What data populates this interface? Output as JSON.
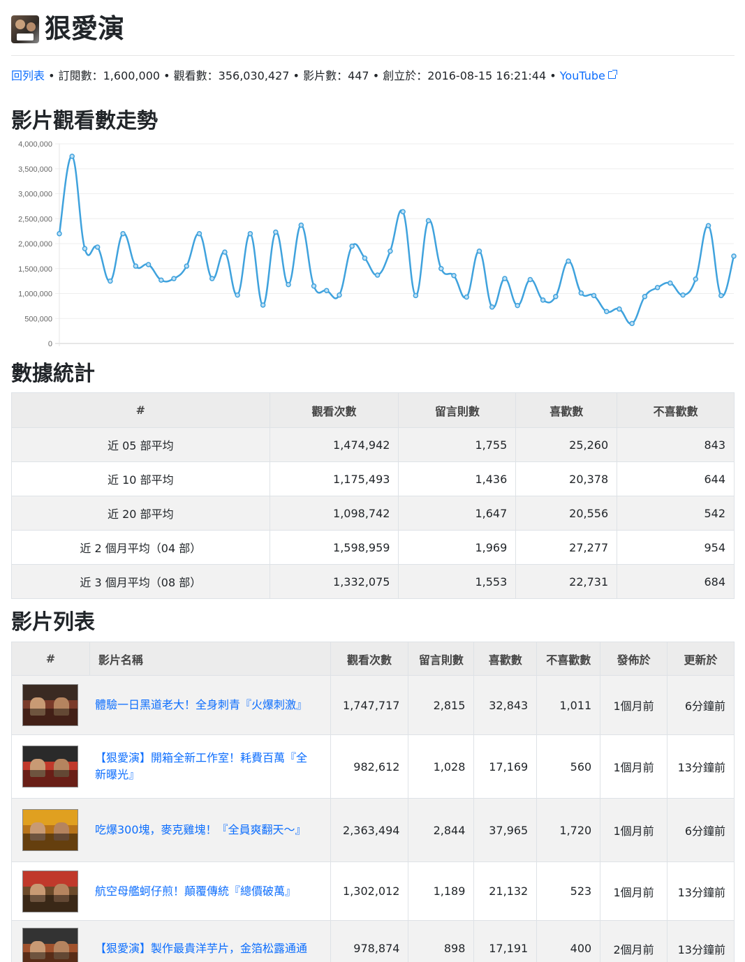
{
  "channel": {
    "title": "狠愛演",
    "back_link": "回列表",
    "meta_text": " • 訂閱數：1,600,000 • 觀看數：356,030,427 • 影片數：447 • 創立於：2016-08-15 16:21:44 • ",
    "youtube_link": "YouTube"
  },
  "sections": {
    "trend": "影片觀看數走勢",
    "stats": "數據統計",
    "videos": "影片列表"
  },
  "chart_data": {
    "type": "line",
    "y_ticks": [
      "4,000,000",
      "3,500,000",
      "3,000,000",
      "2,500,000",
      "2,000,000",
      "1,500,000",
      "1,000,000",
      "500,000",
      "0"
    ],
    "ylim": [
      0,
      4000000
    ],
    "color": "#3fa2dd",
    "values": [
      2200000,
      3750000,
      1900000,
      1930000,
      1250000,
      2200000,
      1550000,
      1580000,
      1270000,
      1300000,
      1550000,
      2200000,
      1300000,
      1830000,
      970000,
      2200000,
      770000,
      2230000,
      1180000,
      2370000,
      1150000,
      1060000,
      970000,
      1950000,
      1710000,
      1370000,
      1850000,
      2640000,
      960000,
      2460000,
      1500000,
      1360000,
      930000,
      1850000,
      730000,
      1300000,
      760000,
      1280000,
      870000,
      940000,
      1650000,
      1010000,
      960000,
      640000,
      690000,
      400000,
      940000,
      1120000,
      1210000,
      970000,
      1290000,
      2360000,
      960000,
      1750000
    ]
  },
  "stats": {
    "headers": [
      "#",
      "觀看次數",
      "留言則數",
      "喜歡數",
      "不喜歡數"
    ],
    "rows": [
      [
        "近 05 部平均",
        "1,474,942",
        "1,755",
        "25,260",
        "843"
      ],
      [
        "近 10 部平均",
        "1,175,493",
        "1,436",
        "20,378",
        "644"
      ],
      [
        "近 20 部平均",
        "1,098,742",
        "1,647",
        "20,556",
        "542"
      ],
      [
        "近 2 個月平均（04 部）",
        "1,598,959",
        "1,969",
        "27,277",
        "954"
      ],
      [
        "近 3 個月平均（08 部）",
        "1,332,075",
        "1,553",
        "22,731",
        "684"
      ]
    ]
  },
  "videos": {
    "headers": [
      "#",
      "影片名稱",
      "觀看次數",
      "留言則數",
      "喜歡數",
      "不喜歡數",
      "發佈於",
      "更新於"
    ],
    "rows": [
      {
        "title": "體驗一日黑道老大！全身刺青『火爆刺激』",
        "views": "1,747,717",
        "comments": "2,815",
        "likes": "32,843",
        "dislikes": "1,011",
        "published": "1個月前",
        "updated": "6分鐘前",
        "c1": "#3a2a22",
        "c2": "#7a3b2a"
      },
      {
        "title": "【狠愛演】開箱全新工作室！耗費百萬『全新曝光』",
        "views": "982,612",
        "comments": "1,028",
        "likes": "17,169",
        "dislikes": "560",
        "published": "1個月前",
        "updated": "13分鐘前",
        "c1": "#2a2a2a",
        "c2": "#c0392b"
      },
      {
        "title": "吃爆300塊，麥克雞塊！『全員爽翻天～』",
        "views": "2,363,494",
        "comments": "2,844",
        "likes": "37,965",
        "dislikes": "1,720",
        "published": "1個月前",
        "updated": "6分鐘前",
        "c1": "#e0a020",
        "c2": "#b8741a"
      },
      {
        "title": "航空母艦蚵仔煎！顛覆傳統『總價破萬』",
        "views": "1,302,012",
        "comments": "1,189",
        "likes": "21,132",
        "dislikes": "523",
        "published": "1個月前",
        "updated": "13分鐘前",
        "c1": "#c0392b",
        "c2": "#6b4a2a"
      },
      {
        "title": "【狠愛演】製作最貴洋芋片，金箔松露通通",
        "views": "978,874",
        "comments": "898",
        "likes": "17,191",
        "dislikes": "400",
        "published": "2個月前",
        "updated": "13分鐘前",
        "c1": "#333",
        "c2": "#a0522d"
      }
    ]
  }
}
